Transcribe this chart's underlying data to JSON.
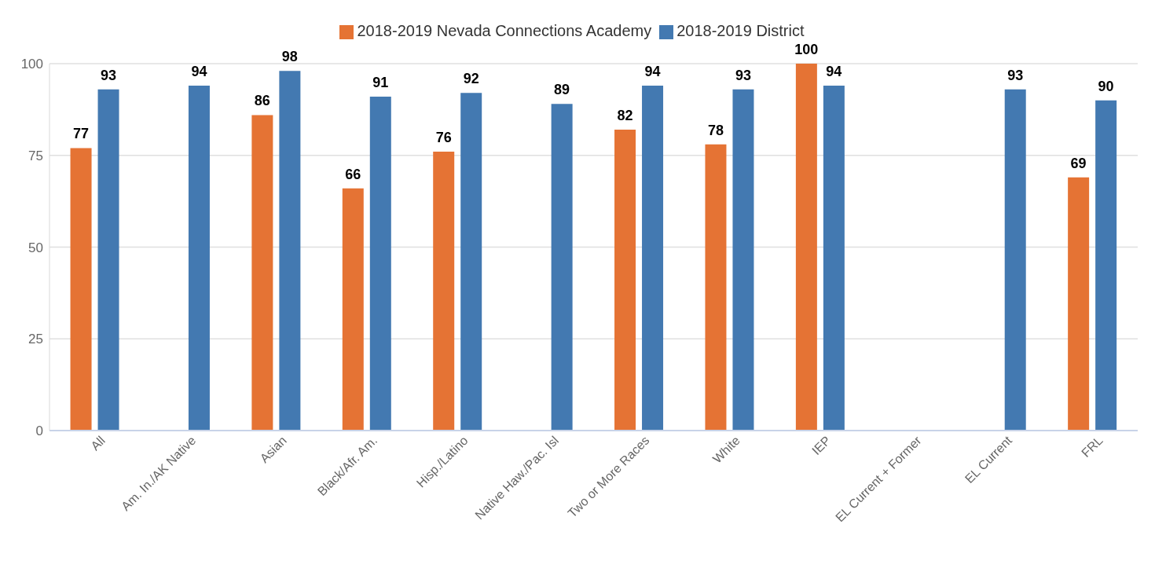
{
  "chart_data": {
    "type": "bar",
    "categories": [
      "All",
      "Am. In./AK Native",
      "Asian",
      "Black/Afr. Am.",
      "Hisp./Latino",
      "Native Haw./Pac. Isl",
      "Two or More Races",
      "White",
      "IEP",
      "EL Current + Former",
      "EL Current",
      "FRL"
    ],
    "series": [
      {
        "name": "2018-2019 Nevada Connections Academy",
        "color": "#e57334",
        "values": [
          77,
          null,
          86,
          66,
          76,
          null,
          82,
          78,
          100,
          null,
          null,
          69
        ]
      },
      {
        "name": "2018-2019 District",
        "color": "#4379b1",
        "values": [
          93,
          94,
          98,
          91,
          92,
          89,
          94,
          93,
          94,
          null,
          93,
          90
        ]
      }
    ],
    "ylim": [
      0,
      100
    ],
    "yticks": [
      0,
      25,
      50,
      75,
      100
    ],
    "grid": "y",
    "legend": "top",
    "data_labels": true
  }
}
